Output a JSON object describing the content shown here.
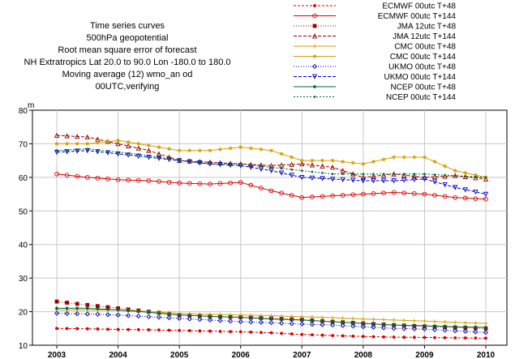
{
  "title_lines": [
    "Time series curves",
    "500hPa geopotential",
    "Root mean square error of forecast",
    "NH Extratropics  Lat  20.0 to 90.0 Lon  -180.0 to  180.0",
    "Moving average (12) wmo_an od",
    "00UTC,verifying"
  ],
  "chart_data": {
    "type": "line",
    "ylabel": "m",
    "ylim": [
      10,
      80
    ],
    "yticks": [
      10,
      20,
      30,
      40,
      50,
      60,
      70,
      80
    ],
    "xlim": [
      2003.0,
      2010.2
    ],
    "xticks": [
      2003,
      2004,
      2005,
      2006,
      2007,
      2008,
      2009,
      2010
    ],
    "xtick_labels": [
      "2003",
      "2004",
      "2005",
      "2006",
      "2007",
      "2008",
      "2009",
      "2010"
    ],
    "grid": true,
    "legend_position": "top-right",
    "series": [
      {
        "name": "ECMWF 00utc T+48",
        "color": "#dd0000",
        "marker": "dot",
        "dash": "3,2",
        "x": [
          2003.0,
          2003.5,
          2004.0,
          2004.5,
          2005.0,
          2005.5,
          2006.0,
          2006.5,
          2007.0,
          2007.5,
          2008.0,
          2008.5,
          2009.0,
          2009.5,
          2010.0
        ],
        "y": [
          15.0,
          14.9,
          14.7,
          14.6,
          14.4,
          14.2,
          14.0,
          13.7,
          13.2,
          12.9,
          12.6,
          12.4,
          12.3,
          12.2,
          12.1
        ]
      },
      {
        "name": "ECMWF 00utc T+144",
        "color": "#dd0000",
        "marker": "circle",
        "dash": "",
        "x": [
          2003.0,
          2003.5,
          2004.0,
          2004.5,
          2005.0,
          2005.5,
          2006.0,
          2006.5,
          2007.0,
          2007.5,
          2008.0,
          2008.5,
          2009.0,
          2009.5,
          2010.0
        ],
        "y": [
          61.0,
          60.0,
          59.3,
          59.0,
          58.3,
          58.0,
          58.5,
          56.0,
          54.0,
          54.5,
          55.0,
          55.5,
          55.0,
          54.0,
          53.5
        ]
      },
      {
        "name": "JMA 12utc T+48",
        "color": "#990000",
        "marker": "square",
        "dash": "1,2",
        "x": [
          2003.0,
          2003.5,
          2004.0,
          2004.5,
          2005.0,
          2005.5,
          2006.0,
          2006.5,
          2007.0,
          2007.5,
          2008.0,
          2008.5,
          2009.0,
          2009.5,
          2010.0
        ],
        "y": [
          23.0,
          22.0,
          21.0,
          20.0,
          19.0,
          18.6,
          18.3,
          18.0,
          17.6,
          17.0,
          16.5,
          16.0,
          15.6,
          15.3,
          15.0
        ]
      },
      {
        "name": "JMA 12utc T+144",
        "color": "#990000",
        "marker": "triangle",
        "dash": "4,2",
        "x": [
          2003.0,
          2003.5,
          2004.0,
          2004.5,
          2005.0,
          2005.5,
          2006.0,
          2006.5,
          2007.0,
          2007.5,
          2008.0,
          2008.5,
          2009.0,
          2009.5,
          2010.0
        ],
        "y": [
          72.5,
          72.0,
          70.0,
          68.0,
          65.0,
          64.5,
          64.0,
          63.5,
          64.0,
          63.0,
          60.0,
          61.0,
          60.0,
          60.5,
          59.5
        ]
      },
      {
        "name": "CMC 00utc T+48",
        "color": "#d4a000",
        "marker": "plus",
        "dash": "",
        "x": [
          2003.0,
          2003.5,
          2004.0,
          2004.5,
          2005.0,
          2005.5,
          2006.0,
          2006.5,
          2007.0,
          2007.5,
          2008.0,
          2008.5,
          2009.0,
          2009.5,
          2010.0
        ],
        "y": [
          20.5,
          20.5,
          20.5,
          20.0,
          19.5,
          19.2,
          19.0,
          18.8,
          18.5,
          18.2,
          17.8,
          17.5,
          17.2,
          16.8,
          16.5
        ]
      },
      {
        "name": "CMC 00utc T+144",
        "color": "#d4a000",
        "marker": "star",
        "dash": "",
        "x": [
          2003.0,
          2003.5,
          2004.0,
          2004.5,
          2005.0,
          2005.5,
          2006.0,
          2006.5,
          2007.0,
          2007.5,
          2008.0,
          2008.5,
          2009.0,
          2009.5,
          2010.0
        ],
        "y": [
          70.0,
          70.0,
          71.0,
          69.5,
          68.0,
          68.0,
          69.0,
          68.0,
          65.0,
          65.0,
          64.0,
          66.0,
          66.0,
          62.0,
          60.0
        ]
      },
      {
        "name": "UKMO 00utc T+48",
        "color": "#0000cc",
        "marker": "diamond",
        "dash": "1,2",
        "x": [
          2003.0,
          2003.5,
          2004.0,
          2004.5,
          2005.0,
          2005.5,
          2006.0,
          2006.5,
          2007.0,
          2007.5,
          2008.0,
          2008.5,
          2009.0,
          2009.5,
          2010.0
        ],
        "y": [
          19.5,
          19.3,
          19.0,
          18.5,
          18.0,
          17.5,
          17.0,
          16.7,
          16.3,
          16.0,
          15.5,
          15.0,
          14.8,
          14.3,
          13.8
        ]
      },
      {
        "name": "UKMO 00utc T+144",
        "color": "#0000cc",
        "marker": "invtriangle",
        "dash": "4,2",
        "x": [
          2003.0,
          2003.5,
          2004.0,
          2004.5,
          2005.0,
          2005.5,
          2006.0,
          2006.5,
          2007.0,
          2007.5,
          2008.0,
          2008.5,
          2009.0,
          2009.5,
          2010.0
        ],
        "y": [
          67.5,
          68.0,
          67.0,
          66.0,
          65.0,
          64.0,
          63.5,
          62.0,
          60.0,
          59.5,
          59.0,
          59.0,
          59.5,
          57.0,
          55.0
        ]
      },
      {
        "name": "NCEP 00utc T+48",
        "color": "#006633",
        "marker": "filleddiamond",
        "dash": "",
        "x": [
          2003.0,
          2003.5,
          2004.0,
          2004.5,
          2005.0,
          2005.5,
          2006.0,
          2006.5,
          2007.0,
          2007.5,
          2008.0,
          2008.5,
          2009.0,
          2009.5,
          2010.0
        ],
        "y": [
          21.0,
          21.0,
          20.5,
          19.8,
          19.0,
          18.6,
          18.3,
          17.8,
          17.5,
          17.0,
          16.5,
          16.0,
          15.8,
          15.5,
          15.3
        ]
      },
      {
        "name": "NCEP 00utc T+144",
        "color": "#006633",
        "marker": "smalldot",
        "dash": "2,2",
        "x": [
          2003.0,
          2003.5,
          2004.0,
          2004.5,
          2005.0,
          2005.5,
          2006.0,
          2006.5,
          2007.0,
          2007.5,
          2008.0,
          2008.5,
          2009.0,
          2009.5,
          2010.0
        ],
        "y": [
          68.0,
          68.5,
          67.5,
          66.5,
          65.0,
          64.0,
          64.0,
          63.0,
          62.0,
          61.0,
          61.0,
          61.0,
          61.0,
          60.5,
          60.0
        ]
      }
    ]
  }
}
